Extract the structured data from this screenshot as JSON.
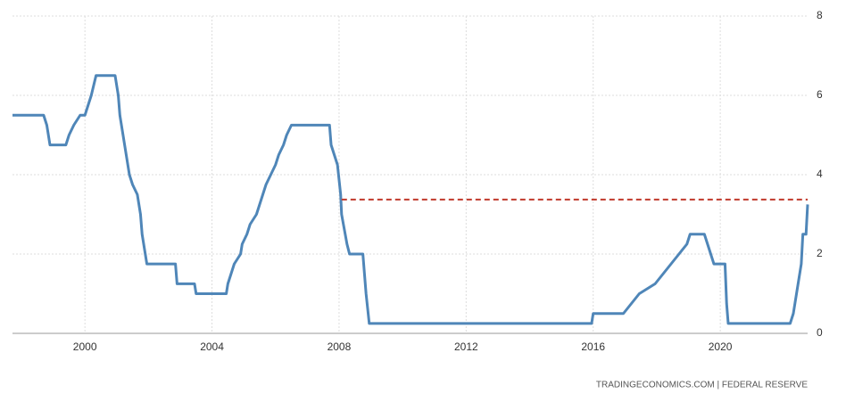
{
  "chart_data": {
    "type": "line",
    "source": "TRADINGECONOMICS.COM  |  FEDERAL RESERVE",
    "xlim": [
      1997.72,
      2022.75
    ],
    "xticks": [
      2000,
      2004,
      2008,
      2012,
      2016,
      2020
    ],
    "ylim": [
      0,
      8
    ],
    "yticks": [
      0,
      2,
      4,
      6,
      8
    ],
    "grid": true,
    "series": [
      {
        "color": "#4f86b8",
        "dashed": false,
        "x": [
          1997.72,
          1998.7,
          1998.8,
          1998.9,
          1999.4,
          1999.5,
          1999.65,
          1999.85,
          2000.0,
          2000.1,
          2000.2,
          2000.35,
          2000.95,
          2001.05,
          2001.1,
          2001.2,
          2001.3,
          2001.4,
          2001.5,
          2001.65,
          2001.75,
          2001.8,
          2001.9,
          2001.95,
          2002.85,
          2002.9,
          2003.45,
          2003.5,
          2004.45,
          2004.5,
          2004.6,
          2004.7,
          2004.9,
          2004.95,
          2005.1,
          2005.2,
          2005.4,
          2005.6,
          2005.7,
          2005.85,
          2006.0,
          2006.1,
          2006.25,
          2006.35,
          2006.5,
          2007.7,
          2007.75,
          2007.85,
          2007.95,
          2008.05,
          2008.08,
          2008.25,
          2008.33,
          2008.75,
          2008.8,
          2008.85,
          2008.95,
          2015.95,
          2016.0,
          2016.95,
          2017.2,
          2017.45,
          2017.95,
          2018.2,
          2018.45,
          2018.7,
          2018.95,
          2019.05,
          2019.5,
          2019.6,
          2019.7,
          2019.8,
          2020.15,
          2020.2,
          2020.25,
          2022.2,
          2022.3,
          2022.4,
          2022.55,
          2022.6,
          2022.7,
          2022.75
        ],
        "values": [
          5.5,
          5.5,
          5.25,
          4.75,
          4.75,
          5.0,
          5.25,
          5.5,
          5.5,
          5.75,
          6.0,
          6.5,
          6.5,
          6.0,
          5.5,
          5.0,
          4.5,
          4.0,
          3.75,
          3.5,
          3.0,
          2.5,
          2.0,
          1.75,
          1.75,
          1.25,
          1.25,
          1.0,
          1.0,
          1.25,
          1.5,
          1.75,
          2.0,
          2.25,
          2.5,
          2.75,
          3.0,
          3.5,
          3.75,
          4.0,
          4.25,
          4.5,
          4.75,
          5.0,
          5.25,
          5.25,
          4.75,
          4.5,
          4.25,
          3.5,
          3.0,
          2.25,
          2.0,
          2.0,
          1.5,
          1.0,
          0.25,
          0.25,
          0.5,
          0.5,
          0.75,
          1.0,
          1.25,
          1.5,
          1.75,
          2.0,
          2.25,
          2.5,
          2.5,
          2.25,
          2.0,
          1.75,
          1.75,
          0.75,
          0.25,
          0.25,
          0.5,
          1.0,
          1.75,
          2.5,
          2.5,
          3.25
        ]
      },
      {
        "color": "#c0392b",
        "dashed": true,
        "x": [
          2008.08,
          2022.75
        ],
        "values": [
          3.375,
          3.375
        ]
      }
    ]
  }
}
